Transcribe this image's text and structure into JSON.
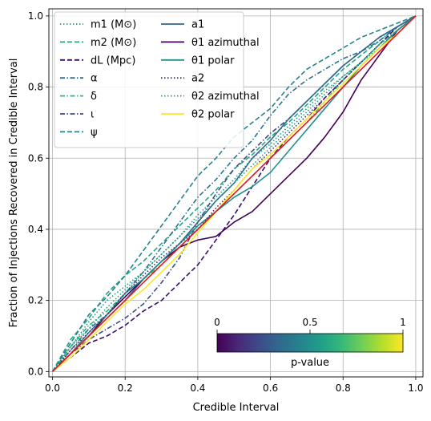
{
  "chart_data": {
    "type": "line",
    "title": "",
    "xlabel": "Credible Interval",
    "ylabel": "Fraction of Injections Recovered in Credible Interval",
    "xlim": [
      -0.01,
      1.02
    ],
    "ylim": [
      -0.015,
      1.02
    ],
    "xticks": [
      "0.0",
      "0.2",
      "0.4",
      "0.6",
      "0.8",
      "1.0"
    ],
    "yticks": [
      "0.0",
      "0.2",
      "0.4",
      "0.6",
      "0.8",
      "1.0"
    ],
    "grid": true,
    "legend_placement": "top-left",
    "legend_columns": 2,
    "diagonal": {
      "color": "#e41a1c",
      "x": [
        0,
        1
      ],
      "y": [
        0,
        1
      ]
    },
    "series": [
      {
        "name": "m1 (M⊙)",
        "style": "dotted",
        "color": "#1f9e89",
        "x": [
          0,
          0.05,
          0.1,
          0.15,
          0.2,
          0.25,
          0.3,
          0.35,
          0.4,
          0.45,
          0.5,
          0.55,
          0.6,
          0.65,
          0.7,
          0.75,
          0.8,
          0.85,
          0.9,
          0.95,
          1.0
        ],
        "y": [
          0,
          0.07,
          0.14,
          0.2,
          0.24,
          0.28,
          0.33,
          0.38,
          0.44,
          0.49,
          0.54,
          0.6,
          0.64,
          0.69,
          0.74,
          0.79,
          0.83,
          0.87,
          0.91,
          0.95,
          1.0
        ]
      },
      {
        "name": "m2 (M⊙)",
        "style": "dashed",
        "color": "#22a884",
        "x": [
          0,
          0.05,
          0.1,
          0.15,
          0.2,
          0.25,
          0.3,
          0.35,
          0.4,
          0.45,
          0.5,
          0.55,
          0.6,
          0.65,
          0.7,
          0.75,
          0.8,
          0.85,
          0.9,
          0.95,
          1.0
        ],
        "y": [
          0,
          0.09,
          0.15,
          0.22,
          0.27,
          0.31,
          0.36,
          0.41,
          0.46,
          0.51,
          0.57,
          0.61,
          0.66,
          0.7,
          0.75,
          0.8,
          0.85,
          0.89,
          0.93,
          0.97,
          1.0
        ]
      },
      {
        "name": "dL (Mpc)",
        "style": "dashed",
        "color": "#3b0f70",
        "x": [
          0,
          0.05,
          0.1,
          0.15,
          0.2,
          0.25,
          0.3,
          0.35,
          0.4,
          0.45,
          0.5,
          0.55,
          0.6,
          0.65,
          0.7,
          0.75,
          0.8,
          0.85,
          0.9,
          0.95,
          1.0
        ],
        "y": [
          0,
          0.04,
          0.08,
          0.1,
          0.13,
          0.17,
          0.2,
          0.25,
          0.3,
          0.37,
          0.44,
          0.52,
          0.6,
          0.66,
          0.71,
          0.77,
          0.82,
          0.87,
          0.92,
          0.97,
          1.0
        ]
      },
      {
        "name": "α",
        "style": "dashdot",
        "color": "#2c728e",
        "x": [
          0,
          0.05,
          0.1,
          0.15,
          0.2,
          0.25,
          0.3,
          0.35,
          0.4,
          0.45,
          0.5,
          0.55,
          0.6,
          0.65,
          0.7,
          0.75,
          0.8,
          0.85,
          0.9,
          0.95,
          1.0
        ],
        "y": [
          0,
          0.06,
          0.12,
          0.16,
          0.22,
          0.28,
          0.35,
          0.42,
          0.49,
          0.54,
          0.6,
          0.65,
          0.72,
          0.78,
          0.82,
          0.85,
          0.88,
          0.9,
          0.93,
          0.97,
          1.0
        ]
      },
      {
        "name": "δ",
        "style": "dashdot",
        "color": "#35b779",
        "x": [
          0,
          0.05,
          0.1,
          0.15,
          0.2,
          0.25,
          0.3,
          0.35,
          0.4,
          0.45,
          0.5,
          0.55,
          0.6,
          0.65,
          0.7,
          0.75,
          0.8,
          0.85,
          0.9,
          0.95,
          1.0
        ],
        "y": [
          0,
          0.07,
          0.13,
          0.17,
          0.22,
          0.26,
          0.3,
          0.35,
          0.4,
          0.45,
          0.5,
          0.55,
          0.6,
          0.65,
          0.7,
          0.76,
          0.82,
          0.87,
          0.92,
          0.96,
          1.0
        ]
      },
      {
        "name": "ι",
        "style": "dashdot",
        "color": "#3e4a89",
        "x": [
          0,
          0.05,
          0.1,
          0.15,
          0.2,
          0.25,
          0.3,
          0.35,
          0.4,
          0.45,
          0.5,
          0.55,
          0.6,
          0.65,
          0.7,
          0.75,
          0.8,
          0.85,
          0.9,
          0.95,
          1.0
        ],
        "y": [
          0,
          0.05,
          0.09,
          0.12,
          0.15,
          0.19,
          0.25,
          0.32,
          0.42,
          0.5,
          0.57,
          0.62,
          0.67,
          0.71,
          0.76,
          0.81,
          0.86,
          0.9,
          0.94,
          0.97,
          1.0
        ]
      },
      {
        "name": "ψ",
        "style": "dashed",
        "color": "#26828e",
        "x": [
          0,
          0.05,
          0.1,
          0.15,
          0.2,
          0.25,
          0.3,
          0.35,
          0.4,
          0.45,
          0.5,
          0.55,
          0.6,
          0.65,
          0.7,
          0.75,
          0.8,
          0.85,
          0.9,
          0.95,
          1.0
        ],
        "y": [
          0,
          0.08,
          0.16,
          0.21,
          0.27,
          0.34,
          0.41,
          0.48,
          0.55,
          0.6,
          0.66,
          0.7,
          0.74,
          0.8,
          0.85,
          0.88,
          0.91,
          0.94,
          0.96,
          0.98,
          1.0
        ]
      },
      {
        "name": "a1",
        "style": "solid",
        "color": "#31688e",
        "x": [
          0,
          0.05,
          0.1,
          0.15,
          0.2,
          0.25,
          0.3,
          0.35,
          0.4,
          0.45,
          0.5,
          0.55,
          0.6,
          0.65,
          0.7,
          0.75,
          0.8,
          0.85,
          0.9,
          0.95,
          1.0
        ],
        "y": [
          0,
          0.05,
          0.1,
          0.15,
          0.2,
          0.26,
          0.31,
          0.36,
          0.42,
          0.48,
          0.53,
          0.6,
          0.65,
          0.71,
          0.76,
          0.81,
          0.86,
          0.9,
          0.94,
          0.97,
          1.0
        ]
      },
      {
        "name": "θ1 azimuthal",
        "style": "solid",
        "color": "#440154",
        "x": [
          0,
          0.05,
          0.1,
          0.15,
          0.2,
          0.25,
          0.3,
          0.35,
          0.4,
          0.45,
          0.5,
          0.55,
          0.6,
          0.65,
          0.7,
          0.75,
          0.8,
          0.85,
          0.9,
          0.95,
          1.0
        ],
        "y": [
          0,
          0.05,
          0.1,
          0.16,
          0.21,
          0.26,
          0.31,
          0.35,
          0.37,
          0.38,
          0.42,
          0.45,
          0.5,
          0.55,
          0.6,
          0.66,
          0.73,
          0.82,
          0.89,
          0.96,
          1.0
        ]
      },
      {
        "name": "θ1 polar",
        "style": "solid",
        "color": "#21918c",
        "x": [
          0,
          0.05,
          0.1,
          0.15,
          0.2,
          0.25,
          0.3,
          0.35,
          0.4,
          0.45,
          0.5,
          0.55,
          0.6,
          0.65,
          0.7,
          0.75,
          0.8,
          0.85,
          0.9,
          0.95,
          1.0
        ],
        "y": [
          0,
          0.05,
          0.11,
          0.16,
          0.22,
          0.26,
          0.31,
          0.36,
          0.41,
          0.45,
          0.49,
          0.52,
          0.56,
          0.62,
          0.68,
          0.74,
          0.8,
          0.86,
          0.91,
          0.96,
          1.0
        ]
      },
      {
        "name": "a2",
        "style": "dotted",
        "color": "#482878",
        "x": [
          0,
          0.05,
          0.1,
          0.15,
          0.2,
          0.25,
          0.3,
          0.35,
          0.4,
          0.45,
          0.5,
          0.55,
          0.6,
          0.65,
          0.7,
          0.75,
          0.8,
          0.85,
          0.9,
          0.95,
          1.0
        ],
        "y": [
          0,
          0.06,
          0.11,
          0.16,
          0.22,
          0.27,
          0.32,
          0.36,
          0.4,
          0.46,
          0.51,
          0.57,
          0.62,
          0.67,
          0.72,
          0.77,
          0.82,
          0.87,
          0.92,
          0.96,
          1.0
        ]
      },
      {
        "name": "θ2 azimuthal",
        "style": "dotted",
        "color": "#1f9e89",
        "x": [
          0,
          0.05,
          0.1,
          0.15,
          0.2,
          0.25,
          0.3,
          0.35,
          0.4,
          0.45,
          0.5,
          0.55,
          0.6,
          0.65,
          0.7,
          0.75,
          0.8,
          0.85,
          0.9,
          0.95,
          1.0
        ],
        "y": [
          0,
          0.07,
          0.12,
          0.18,
          0.23,
          0.28,
          0.33,
          0.38,
          0.43,
          0.48,
          0.53,
          0.58,
          0.63,
          0.68,
          0.73,
          0.78,
          0.83,
          0.87,
          0.92,
          0.96,
          1.0
        ]
      },
      {
        "name": "θ2 polar",
        "style": "solid",
        "color": "#fde725",
        "x": [
          0,
          0.05,
          0.1,
          0.15,
          0.2,
          0.25,
          0.3,
          0.35,
          0.4,
          0.45,
          0.5,
          0.55,
          0.6,
          0.65,
          0.7,
          0.75,
          0.8,
          0.85,
          0.9,
          0.95,
          1.0
        ],
        "y": [
          0,
          0.04,
          0.09,
          0.14,
          0.19,
          0.23,
          0.28,
          0.33,
          0.39,
          0.45,
          0.51,
          0.57,
          0.61,
          0.66,
          0.71,
          0.76,
          0.81,
          0.86,
          0.91,
          0.95,
          1.0
        ]
      }
    ],
    "colorbar": {
      "label": "p-value",
      "ticks": [
        "0",
        "0.5",
        "1"
      ],
      "colormap": [
        "#440154",
        "#482878",
        "#3e4a89",
        "#31688e",
        "#26828e",
        "#1f9e89",
        "#35b779",
        "#6ece58",
        "#b5de2b",
        "#fde725"
      ]
    }
  }
}
